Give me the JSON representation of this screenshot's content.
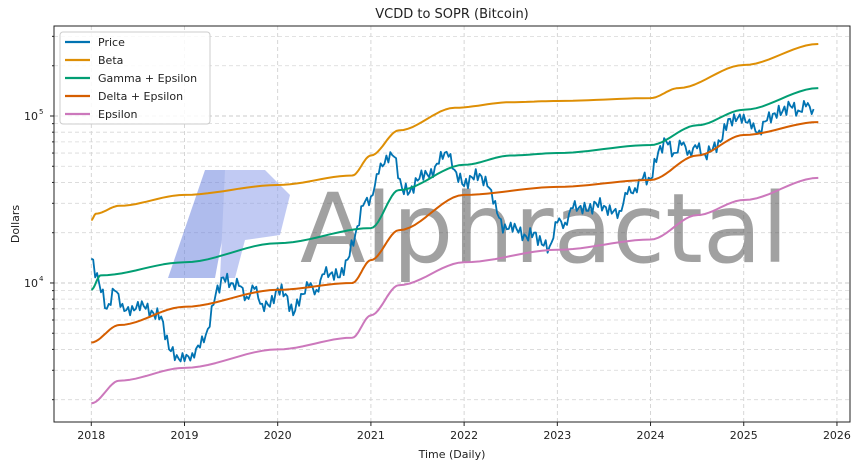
{
  "chart_data": {
    "type": "line",
    "title": "VCDD to SOPR (Bitcoin)",
    "xlabel": "Time (Daily)",
    "ylabel": "Dollars",
    "yscale": "log",
    "xlim": [
      2017.6,
      2026.14
    ],
    "ylim": [
      1470,
      346000
    ],
    "grid": true,
    "legend_position": "top-left",
    "x_ticks": [
      "2018",
      "2019",
      "2020",
      "2021",
      "2022",
      "2023",
      "2024",
      "2025",
      "2026"
    ],
    "y_ticks": [
      {
        "value": 10000,
        "label": "10",
        "exp": "4"
      },
      {
        "value": 100000,
        "label": "10",
        "exp": "5"
      }
    ],
    "watermark": "Alphractal",
    "series": [
      {
        "name": "Price",
        "color": "#0173b2",
        "x_start": 2018.0,
        "x_step": 0.08333,
        "values": [
          14000,
          10000,
          7000,
          9000,
          7500,
          6400,
          7700,
          7000,
          6600,
          6300,
          4000,
          3700,
          3400,
          3800,
          4100,
          5300,
          8500,
          10800,
          10000,
          9600,
          8300,
          9200,
          7500,
          7200,
          9300,
          8600,
          6400,
          8600,
          9500,
          9100,
          11300,
          11600,
          10800,
          13800,
          19700,
          29000,
          33000,
          45000,
          58000,
          57000,
          37000,
          35000,
          41000,
          47000,
          43000,
          61000,
          57000,
          46000,
          38000,
          43000,
          45000,
          38000,
          31000,
          20000,
          23000,
          20000,
          19000,
          20000,
          17000,
          16500,
          23000,
          23000,
          28000,
          29000,
          27000,
          30000,
          29000,
          26000,
          27000,
          34000,
          37000,
          42000,
          42000,
          61000,
          71000,
          60000,
          67000,
          62000,
          64000,
          59000,
          63000,
          70000,
          96000,
          93000,
          102000,
          84000,
          82000,
          94000,
          104000,
          107000,
          115000,
          108000,
          114000,
          110000
        ]
      },
      {
        "name": "Beta",
        "color": "#de8f05",
        "x": [
          2018.0,
          2018.05,
          2018.3,
          2019.0,
          2020.0,
          2020.8,
          2021.0,
          2021.3,
          2021.9,
          2022.5,
          2023.0,
          2024.0,
          2024.3,
          2025.0,
          2025.8
        ],
        "values": [
          23800,
          26000,
          29000,
          33700,
          38600,
          44000,
          58000,
          82000,
          112000,
          121000,
          123000,
          128000,
          147000,
          202000,
          270000
        ]
      },
      {
        "name": "Gamma + Epsilon",
        "color": "#029e73",
        "x": [
          2018.0,
          2018.1,
          2019.0,
          2020.0,
          2021.0,
          2021.3,
          2022.0,
          2022.5,
          2023.0,
          2024.0,
          2024.5,
          2025.0,
          2025.8
        ],
        "values": [
          9100,
          11100,
          13300,
          17300,
          21300,
          36000,
          51000,
          58000,
          60000,
          67000,
          88000,
          109000,
          147000
        ]
      },
      {
        "name": "Delta + Epsilon",
        "color": "#d55e00",
        "x": [
          2018.0,
          2018.3,
          2019.0,
          2020.0,
          2020.8,
          2021.0,
          2021.3,
          2022.0,
          2023.0,
          2024.0,
          2024.5,
          2025.0,
          2025.8
        ],
        "values": [
          4400,
          5600,
          7200,
          9100,
          10000,
          13700,
          20700,
          33700,
          37600,
          41400,
          58000,
          77000,
          92000
        ]
      },
      {
        "name": "Epsilon",
        "color": "#cc78bc",
        "x": [
          2018.0,
          2018.3,
          2019.0,
          2020.0,
          2020.8,
          2021.0,
          2021.3,
          2022.0,
          2023.0,
          2024.0,
          2024.5,
          2025.0,
          2025.8
        ],
        "values": [
          1900,
          2600,
          3100,
          4000,
          4700,
          6400,
          9700,
          13300,
          15800,
          18200,
          25500,
          31400,
          42600
        ]
      }
    ]
  }
}
